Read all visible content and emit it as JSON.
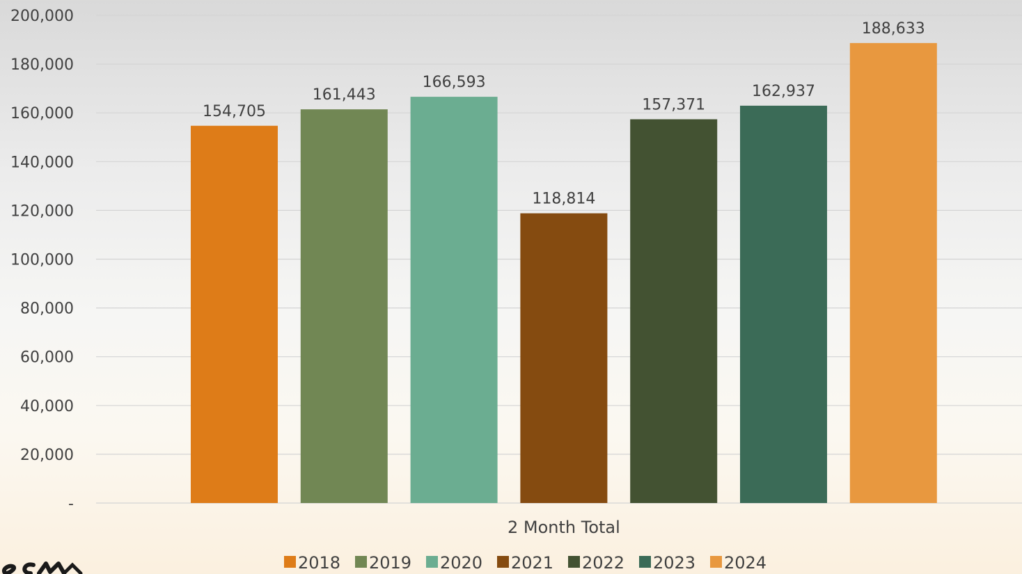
{
  "chart_data": {
    "type": "bar",
    "title": "",
    "xlabel": "",
    "ylabel": "",
    "categories": [
      "2 Month Total"
    ],
    "series": [
      {
        "name": "2018",
        "values": [
          154705
        ],
        "color": "#DE7C18"
      },
      {
        "name": "2019",
        "values": [
          161443
        ],
        "color": "#718754"
      },
      {
        "name": "2020",
        "values": [
          166593
        ],
        "color": "#6BAD91"
      },
      {
        "name": "2021",
        "values": [
          118814
        ],
        "color": "#854B10"
      },
      {
        "name": "2022",
        "values": [
          157371
        ],
        "color": "#435232"
      },
      {
        "name": "2023",
        "values": [
          162937
        ],
        "color": "#3B6B57"
      },
      {
        "name": "2024",
        "values": [
          188633
        ],
        "color": "#E8983F"
      }
    ],
    "data_labels": [
      "154,705",
      "161,443",
      "166,593",
      "118,814",
      "157,371",
      "162,937",
      "188,633"
    ],
    "ylim": [
      0,
      200000
    ],
    "yticks": [
      0,
      20000,
      40000,
      60000,
      80000,
      100000,
      120000,
      140000,
      160000,
      180000,
      200000
    ],
    "ytick_labels": [
      "-",
      "20,000",
      "40,000",
      "60,000",
      "80,000",
      "100,000",
      "120,000",
      "140,000",
      "160,000",
      "180,000",
      "200,000"
    ],
    "grid": true,
    "legend_position": "bottom"
  },
  "logo": {
    "text": "SCM",
    "icon": "logo-icon"
  }
}
